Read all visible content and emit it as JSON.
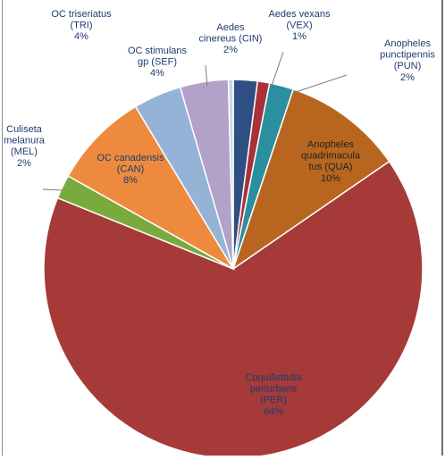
{
  "chart_data": {
    "type": "pie",
    "title": "",
    "start_angle_deg": 90,
    "direction": "clockwise",
    "slices": [
      {
        "name": "Aedes cinereus (CIN)",
        "value": 2,
        "pct_label": "2%",
        "label_lines": [
          "Aedes",
          "cinereus (CIN)",
          "2%"
        ],
        "color": "#2e4f82",
        "label_color": "#1f3c6e"
      },
      {
        "name": "Aedes vexans (VEX)",
        "value": 1,
        "pct_label": "1%",
        "label_lines": [
          "Aedes vexans",
          "(VEX)",
          "1%"
        ],
        "color": "#a8313a",
        "label_color": "#1f3c6e"
      },
      {
        "name": "Anopheles punctipennis (PUN)",
        "value": 2,
        "pct_label": "2%",
        "label_lines": [
          "Anopheles",
          "punctipennis",
          "(PUN)",
          "2%"
        ],
        "color": "#2a8f9f",
        "label_color": "#1f3c6e"
      },
      {
        "name": "Anopheles quadrimaculatus (QUA)",
        "value": 10,
        "pct_label": "10%",
        "label_lines": [
          "Anopheles",
          "quadrimacula",
          "tus (QUA)",
          "10%"
        ],
        "color": "#b8661f",
        "label_color": "#222222"
      },
      {
        "name": "Coquillettidia perturbans (PER)",
        "value": 64,
        "pct_label": "64%",
        "label_lines": [
          "Coquillettidia",
          "perturbans",
          "(PER)",
          "64%"
        ],
        "color": "#a53a38",
        "label_color": "#1f3c6e"
      },
      {
        "name": "Culiseta melanura (MEL)",
        "value": 2,
        "pct_label": "2%",
        "label_lines": [
          "Culiseta",
          "melanura",
          "(MEL)",
          "2%"
        ],
        "color": "#7aaa3e",
        "label_color": "#1f3c6e"
      },
      {
        "name": "OC canadensis (CAN)",
        "value": 8,
        "pct_label": "8%",
        "label_lines": [
          "OC canadensis",
          "(CAN)",
          "8%"
        ],
        "color": "#ee8a3e",
        "label_color": "#1f3c6e"
      },
      {
        "name": "OC stimulans gp (SEF)",
        "value": 4,
        "pct_label": "4%",
        "label_lines": [
          "OC stimulans",
          "gp (SEF)",
          "4%"
        ],
        "color": "#95b3d7",
        "label_color": "#1f3c6e"
      },
      {
        "name": "OC triseriatus (TRI)",
        "value": 4,
        "pct_label": "4%",
        "label_lines": [
          "OC triseriatus",
          "(TRI)",
          "4%"
        ],
        "color": "#b3a2c7",
        "label_color": "#1f3c6e"
      },
      {
        "name": "",
        "value": 0.4,
        "pct_label": "",
        "label_lines": [],
        "color": "#c7d6e8",
        "label_color": "#1f3c6e"
      }
    ]
  }
}
